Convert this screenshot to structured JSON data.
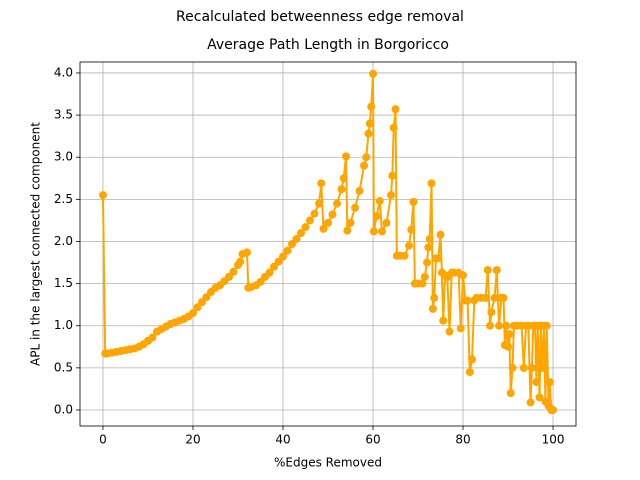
{
  "chart_data": {
    "type": "line",
    "suptitle": "Recalculated betweenness edge removal",
    "title": "Average Path Length in Borgoricco",
    "xlabel": "%Edges Removed",
    "ylabel": "APL in the largest connected component",
    "color": "#ffa500",
    "grid": true,
    "xlim": [
      -5.1,
      105.1
    ],
    "ylim": [
      -0.19,
      4.13
    ],
    "xticks": [
      0,
      20,
      40,
      60,
      80,
      100
    ],
    "yticks": [
      {
        "value": 0,
        "label": "0.0"
      },
      0.5,
      {
        "value": 1,
        "label": "1.0"
      },
      1.5,
      {
        "value": 2,
        "label": "2.0"
      },
      2.5,
      {
        "value": 3,
        "label": "3.0"
      },
      3.5,
      {
        "value": 4,
        "label": "4.0"
      }
    ],
    "x": [
      0,
      0.5,
      1,
      2,
      3,
      4,
      5,
      6,
      7,
      8,
      9,
      10,
      11,
      12,
      13,
      14,
      15,
      16,
      17,
      18,
      19,
      20,
      21,
      22,
      23,
      24,
      25,
      26,
      27,
      28,
      29,
      30,
      30.5,
      31,
      32,
      32.3,
      33,
      34,
      35,
      36,
      37,
      38,
      39,
      40,
      41,
      42,
      43,
      44,
      45,
      46,
      47,
      48,
      48.5,
      49,
      50,
      51,
      52,
      53,
      53.5,
      54,
      54.3,
      55,
      56,
      57,
      58,
      58.5,
      59,
      59.3,
      59.6,
      60,
      60.2,
      60.8,
      61.5,
      62,
      63,
      64,
      64.3,
      64.6,
      65,
      65.3,
      66,
      67,
      68,
      68.5,
      69,
      69.3,
      70,
      71,
      71.5,
      72,
      72.3,
      72.6,
      73,
      73.3,
      73.6,
      74,
      74.5,
      75,
      75.3,
      75.6,
      76,
      76.5,
      77,
      77.5,
      78,
      79,
      79.5,
      80,
      80.5,
      81,
      81.5,
      82,
      82.5,
      83,
      84,
      85,
      85.5,
      86,
      86.3,
      87,
      87.5,
      88,
      88.5,
      89,
      89.3,
      89.6,
      90,
      90.3,
      90.6,
      91,
      91.3,
      92,
      93,
      93.5,
      94,
      94.5,
      95,
      95.3,
      95.6,
      96,
      96.3,
      96.6,
      97,
      97.3,
      97.6,
      98,
      98.3,
      98.6,
      99,
      99.3,
      99.6,
      100
    ],
    "values": [
      2.55,
      0.67,
      0.67,
      0.68,
      0.69,
      0.7,
      0.71,
      0.72,
      0.73,
      0.75,
      0.78,
      0.82,
      0.86,
      0.93,
      0.96,
      0.99,
      1.02,
      1.04,
      1.06,
      1.08,
      1.11,
      1.15,
      1.22,
      1.28,
      1.34,
      1.4,
      1.45,
      1.48,
      1.53,
      1.58,
      1.64,
      1.72,
      1.76,
      1.85,
      1.87,
      1.45,
      1.46,
      1.48,
      1.52,
      1.58,
      1.63,
      1.7,
      1.76,
      1.82,
      1.89,
      1.97,
      2.03,
      2.1,
      2.17,
      2.25,
      2.33,
      2.45,
      2.69,
      2.15,
      2.22,
      2.32,
      2.45,
      2.62,
      2.75,
      3.01,
      2.13,
      2.22,
      2.4,
      2.6,
      2.9,
      3.0,
      3.28,
      3.4,
      3.6,
      3.99,
      2.12,
      2.3,
      2.48,
      2.12,
      2.22,
      2.55,
      2.78,
      3.35,
      3.57,
      1.83,
      1.83,
      1.83,
      1.95,
      2.14,
      2.47,
      1.5,
      1.5,
      1.5,
      1.58,
      1.75,
      1.93,
      2.03,
      2.69,
      1.2,
      1.33,
      1.8,
      1.8,
      2.08,
      1.63,
      1.06,
      1.6,
      1.58,
      0.93,
      1.63,
      1.63,
      1.63,
      0.97,
      1.6,
      1.3,
      1.3,
      0.45,
      0.6,
      1.3,
      1.33,
      1.33,
      1.33,
      1.66,
      1.0,
      1.16,
      1.33,
      1.66,
      1.0,
      1.33,
      1.33,
      0.77,
      1.0,
      0.75,
      0.9,
      0.2,
      0.5,
      1.0,
      1.0,
      1.0,
      0.5,
      1.0,
      1.0,
      0.09,
      0.5,
      1.0,
      1.0,
      0.33,
      1.0,
      0.15,
      1.0,
      0.5,
      1.0,
      0.1,
      1.0,
      0.05,
      0.33,
      0.0,
      0.0
    ]
  }
}
